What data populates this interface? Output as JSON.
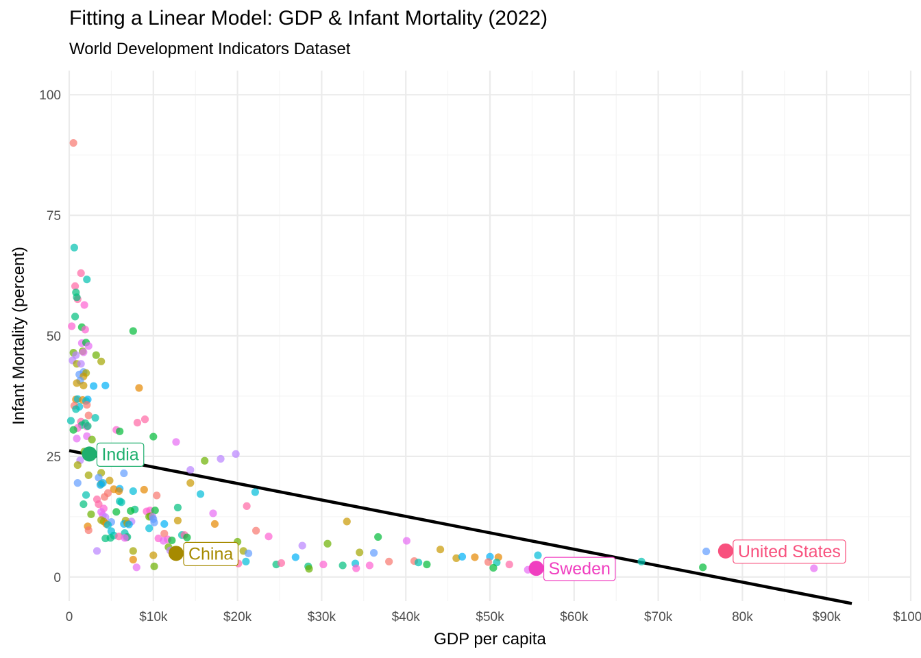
{
  "chart_data": {
    "type": "scatter",
    "title": "Fitting a Linear Model: GDP & Infant Mortality (2022)",
    "subtitle": "World Development Indicators Dataset",
    "xlabel": "GDP per capita",
    "ylabel": "Infant Mortality (percent)",
    "xlim": [
      0,
      100000
    ],
    "ylim": [
      -5,
      105
    ],
    "x_ticks": [
      {
        "value": 0,
        "label": "0"
      },
      {
        "value": 10000,
        "label": "$10k"
      },
      {
        "value": 20000,
        "label": "$20k"
      },
      {
        "value": 30000,
        "label": "$30k"
      },
      {
        "value": 40000,
        "label": "$40k"
      },
      {
        "value": 50000,
        "label": "$50k"
      },
      {
        "value": 60000,
        "label": "$60k"
      },
      {
        "value": 70000,
        "label": "$70k"
      },
      {
        "value": 80000,
        "label": "80k"
      },
      {
        "value": 90000,
        "label": "$90k"
      },
      {
        "value": 100000,
        "label": "$100k"
      }
    ],
    "y_ticks": [
      {
        "value": 0,
        "label": "0"
      },
      {
        "value": 25,
        "label": "25"
      },
      {
        "value": 50,
        "label": "50"
      },
      {
        "value": 75,
        "label": "75"
      },
      {
        "value": 100,
        "label": "100"
      }
    ],
    "grid": true,
    "legend": "none",
    "fit_line": {
      "x": [
        0,
        93000
      ],
      "y": [
        26.2,
        -5.5
      ],
      "color": "#000000"
    },
    "palette": [
      "#F8766D",
      "#E58700",
      "#C99800",
      "#A3A500",
      "#6BB100",
      "#00BA38",
      "#00BF7D",
      "#00C0AF",
      "#00BCD8",
      "#00B0F6",
      "#619CFF",
      "#B983FF",
      "#E76BF3",
      "#FD61D1",
      "#FF67A4"
    ],
    "highlights": [
      {
        "label": "India",
        "x": 2400,
        "y": 25.5,
        "color": "#1FAF6E"
      },
      {
        "label": "China",
        "x": 12700,
        "y": 4.9,
        "color": "#A68A00"
      },
      {
        "label": "Sweden",
        "x": 55500,
        "y": 1.8,
        "color": "#F03FC0"
      },
      {
        "label": "United States",
        "x": 78000,
        "y": 5.4,
        "color": "#F8517E"
      }
    ],
    "points": [
      [
        500,
        90
      ],
      [
        600,
        68.3
      ],
      [
        1400,
        63
      ],
      [
        2100,
        61.7
      ],
      [
        700,
        60.3
      ],
      [
        800,
        59
      ],
      [
        1000,
        57.6
      ],
      [
        900,
        58
      ],
      [
        1800,
        56.4
      ],
      [
        700,
        54
      ],
      [
        300,
        52
      ],
      [
        1500,
        51.8
      ],
      [
        1900,
        51.3
      ],
      [
        7600,
        51
      ],
      [
        1500,
        48.5
      ],
      [
        2000,
        48.6
      ],
      [
        2300,
        47.9
      ],
      [
        1600,
        46.8
      ],
      [
        1700,
        46.6
      ],
      [
        500,
        46.5
      ],
      [
        800,
        46
      ],
      [
        3200,
        46
      ],
      [
        400,
        44.9
      ],
      [
        900,
        44.2
      ],
      [
        1400,
        44.2
      ],
      [
        3800,
        44.7
      ],
      [
        1700,
        42.5
      ],
      [
        2000,
        42.3
      ],
      [
        1200,
        42
      ],
      [
        1700,
        41.6
      ],
      [
        1300,
        40.7
      ],
      [
        900,
        40.2
      ],
      [
        2900,
        39.6
      ],
      [
        1700,
        39.7
      ],
      [
        4300,
        39.7
      ],
      [
        8300,
        39.2
      ],
      [
        2200,
        36.8
      ],
      [
        800,
        36.8
      ],
      [
        1000,
        36.9
      ],
      [
        1600,
        36.7
      ],
      [
        2000,
        36.5
      ],
      [
        2100,
        35.7
      ],
      [
        1200,
        35.3
      ],
      [
        600,
        35.5
      ],
      [
        800,
        34.8
      ],
      [
        2300,
        33.5
      ],
      [
        3100,
        33
      ],
      [
        9000,
        32.7
      ],
      [
        200,
        32.4
      ],
      [
        1400,
        32.2
      ],
      [
        1900,
        31.9
      ],
      [
        8100,
        32
      ],
      [
        1500,
        31.5
      ],
      [
        2100,
        31.2
      ],
      [
        2200,
        31.3
      ],
      [
        1000,
        30.9
      ],
      [
        500,
        30.5
      ],
      [
        5600,
        30.5
      ],
      [
        6000,
        30.2
      ],
      [
        2100,
        29.2
      ],
      [
        10000,
        29.1
      ],
      [
        900,
        28.7
      ],
      [
        2700,
        28.5
      ],
      [
        12700,
        28
      ],
      [
        1800,
        26
      ],
      [
        1300,
        24.2
      ],
      [
        16100,
        24.1
      ],
      [
        18000,
        24.5
      ],
      [
        1000,
        23.2
      ],
      [
        14400,
        22.2
      ],
      [
        3800,
        21.6
      ],
      [
        6500,
        21.5
      ],
      [
        2300,
        21.1
      ],
      [
        3500,
        20.6
      ],
      [
        4800,
        20
      ],
      [
        1000,
        19.5
      ],
      [
        3800,
        19.3
      ],
      [
        4000,
        19.5
      ],
      [
        14400,
        19.5
      ],
      [
        3700,
        19.1
      ],
      [
        5300,
        18.2
      ],
      [
        6000,
        18.3
      ],
      [
        8900,
        18.1
      ],
      [
        7600,
        17.8
      ],
      [
        5900,
        17.8
      ],
      [
        22100,
        17.6
      ],
      [
        4600,
        17.4
      ],
      [
        15600,
        17.2
      ],
      [
        10400,
        16.9
      ],
      [
        2000,
        17
      ],
      [
        4200,
        16.6
      ],
      [
        6000,
        15.7
      ],
      [
        3300,
        16.1
      ],
      [
        6200,
        15.5
      ],
      [
        3500,
        15.1
      ],
      [
        1700,
        15.1
      ],
      [
        21100,
        14.7
      ],
      [
        12900,
        14.4
      ],
      [
        4100,
        14.2
      ],
      [
        7800,
        14
      ],
      [
        9600,
        13.8
      ],
      [
        7300,
        13.7
      ],
      [
        9200,
        13.6
      ],
      [
        10200,
        13.8
      ],
      [
        3800,
        13.5
      ],
      [
        5600,
        13.5
      ],
      [
        17100,
        13.2
      ],
      [
        2600,
        13
      ],
      [
        4000,
        12.8
      ],
      [
        9700,
        12.6
      ],
      [
        4300,
        12.4
      ],
      [
        9500,
        12.5
      ],
      [
        9900,
        12.5
      ],
      [
        6700,
        11.7
      ],
      [
        7400,
        11.5
      ],
      [
        3800,
        11.8
      ],
      [
        10000,
        12
      ],
      [
        4100,
        11.5
      ],
      [
        5000,
        11.4
      ],
      [
        12900,
        11.7
      ],
      [
        10100,
        11.3
      ],
      [
        33000,
        11.5
      ],
      [
        6500,
        11
      ],
      [
        6900,
        11.1
      ],
      [
        7100,
        10.9
      ],
      [
        4400,
        11
      ],
      [
        11300,
        11
      ],
      [
        17300,
        11
      ],
      [
        4600,
        10.8
      ],
      [
        2200,
        10.5
      ],
      [
        9500,
        10.1
      ],
      [
        2300,
        9.7
      ],
      [
        5000,
        9.5
      ],
      [
        22200,
        9.6
      ],
      [
        6600,
        9.1
      ],
      [
        11300,
        9
      ],
      [
        5300,
        8.6
      ],
      [
        5900,
        8.4
      ],
      [
        13400,
        8.7
      ],
      [
        13700,
        8.7
      ],
      [
        4300,
        8
      ],
      [
        6800,
        8.2
      ],
      [
        6900,
        8.3
      ],
      [
        10600,
        8
      ],
      [
        4900,
        8.1
      ],
      [
        11700,
        7.8
      ],
      [
        14000,
        8.2
      ],
      [
        23700,
        8.4
      ],
      [
        36700,
        8.3
      ],
      [
        6600,
        8.1
      ],
      [
        12200,
        7.6
      ],
      [
        11200,
        7.5
      ],
      [
        20000,
        7.3
      ],
      [
        40100,
        7.5
      ],
      [
        30700,
        6.9
      ],
      [
        27700,
        6.5
      ],
      [
        11800,
        6.2
      ],
      [
        12000,
        5.5
      ],
      [
        7600,
        5.4
      ],
      [
        3300,
        5.4
      ],
      [
        20700,
        5.4
      ],
      [
        21300,
        4.9
      ],
      [
        34500,
        5.1
      ],
      [
        36200,
        5
      ],
      [
        44100,
        5.7
      ],
      [
        75700,
        5.3
      ],
      [
        10000,
        4.5
      ],
      [
        26900,
        4.1
      ],
      [
        46000,
        3.9
      ],
      [
        46700,
        4.2
      ],
      [
        48200,
        4.1
      ],
      [
        50000,
        4.2
      ],
      [
        51000,
        4.1
      ],
      [
        55700,
        4.5
      ],
      [
        7600,
        3.6
      ],
      [
        21000,
        3.2
      ],
      [
        41000,
        3.3
      ],
      [
        34000,
        2.8
      ],
      [
        38000,
        3.2
      ],
      [
        41500,
        3
      ],
      [
        49800,
        3.1
      ],
      [
        50800,
        3
      ],
      [
        52300,
        2.6
      ],
      [
        68000,
        3.2
      ],
      [
        20100,
        2.8
      ],
      [
        24600,
        2.6
      ],
      [
        25200,
        2.9
      ],
      [
        28400,
        2.2
      ],
      [
        30200,
        2.6
      ],
      [
        32500,
        2.4
      ],
      [
        35700,
        2.4
      ],
      [
        42500,
        2.6
      ],
      [
        34100,
        1.8
      ],
      [
        50400,
        1.9
      ],
      [
        54500,
        1.5
      ],
      [
        75300,
        2
      ],
      [
        88500,
        1.8
      ],
      [
        10100,
        2.2
      ],
      [
        8000,
        2
      ],
      [
        28500,
        1.7
      ],
      [
        19800,
        25.5
      ]
    ]
  }
}
